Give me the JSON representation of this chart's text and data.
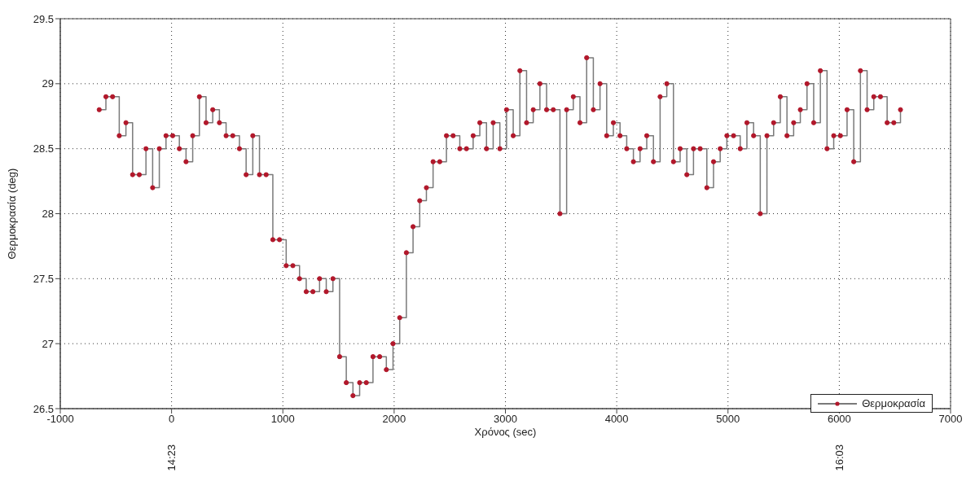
{
  "chart_data": {
    "type": "step",
    "xlabel": "Χρόνος (sec)",
    "ylabel": "Θερμοκρασία (deg)",
    "xlim": [
      -1000,
      7000
    ],
    "xticks": [
      -1000,
      0,
      1000,
      2000,
      3000,
      4000,
      5000,
      6000,
      7000
    ],
    "ylim": [
      26.5,
      29.5
    ],
    "yticks": [
      26.5,
      27,
      27.5,
      28,
      28.5,
      29,
      29.5
    ],
    "grid": true,
    "legend": "bottom right",
    "marker": "circle",
    "line_style": "solid",
    "x2lim": [
      14.1056,
      16.3278
    ],
    "x2ticks": [
      {
        "value": 14.3833,
        "label": "14:23"
      },
      {
        "value": 16.05,
        "label": "16:03"
      }
    ],
    "x": [
      -650,
      -590,
      -530,
      -470,
      -410,
      -350,
      -290,
      -230,
      -170,
      -110,
      -50,
      10,
      70,
      130,
      190,
      250,
      310,
      370,
      430,
      490,
      550,
      610,
      670,
      730,
      790,
      850,
      910,
      970,
      1030,
      1090,
      1150,
      1210,
      1270,
      1330,
      1390,
      1450,
      1510,
      1570,
      1630,
      1690,
      1750,
      1810,
      1870,
      1930,
      1990,
      2050,
      2110,
      2170,
      2230,
      2290,
      2350,
      2410,
      2470,
      2530,
      2590,
      2650,
      2710,
      2770,
      2830,
      2890,
      2950,
      3010,
      3070,
      3130,
      3190,
      3250,
      3310,
      3370,
      3430,
      3490,
      3550,
      3610,
      3670,
      3730,
      3790,
      3850,
      3910,
      3970,
      4030,
      4090,
      4150,
      4210,
      4270,
      4330,
      4390,
      4450,
      4510,
      4570,
      4630,
      4690,
      4750,
      4810,
      4870,
      4930,
      4990,
      5050,
      5110,
      5170,
      5230,
      5290,
      5350,
      5410,
      5470,
      5530,
      5590,
      5650,
      5710,
      5770,
      5830,
      5890,
      5950,
      6010,
      6070,
      6130,
      6190,
      6250,
      6310,
      6370,
      6430,
      6490,
      6550
    ],
    "series": [
      {
        "name": "Θερμοκρασία",
        "color": "#b2182b",
        "values": [
          28.8,
          28.9,
          28.9,
          28.6,
          28.7,
          28.3,
          28.3,
          28.5,
          28.2,
          28.5,
          28.6,
          28.6,
          28.5,
          28.4,
          28.6,
          28.9,
          28.7,
          28.8,
          28.7,
          28.6,
          28.6,
          28.5,
          28.3,
          28.6,
          28.3,
          28.3,
          27.8,
          27.8,
          27.6,
          27.6,
          27.5,
          27.4,
          27.4,
          27.5,
          27.4,
          27.5,
          26.9,
          26.7,
          26.6,
          26.7,
          26.7,
          26.9,
          26.9,
          26.8,
          27.0,
          27.2,
          27.7,
          27.9,
          28.1,
          28.2,
          28.4,
          28.4,
          28.6,
          28.6,
          28.5,
          28.5,
          28.6,
          28.7,
          28.5,
          28.7,
          28.5,
          28.8,
          28.6,
          29.1,
          28.7,
          28.8,
          29.0,
          28.8,
          28.8,
          28.0,
          28.8,
          28.9,
          28.7,
          29.2,
          28.8,
          29.0,
          28.6,
          28.7,
          28.6,
          28.5,
          28.4,
          28.5,
          28.6,
          28.4,
          28.9,
          29.0,
          28.4,
          28.5,
          28.3,
          28.5,
          28.5,
          28.2,
          28.4,
          28.5,
          28.6,
          28.6,
          28.5,
          28.7,
          28.6,
          28.0,
          28.6,
          28.7,
          28.9,
          28.6,
          28.7,
          28.8,
          29.0,
          28.7,
          29.1,
          28.5,
          28.6,
          28.6,
          28.8,
          28.4,
          29.1,
          28.8,
          28.9,
          28.9,
          28.7,
          28.7,
          28.8
        ]
      }
    ]
  }
}
